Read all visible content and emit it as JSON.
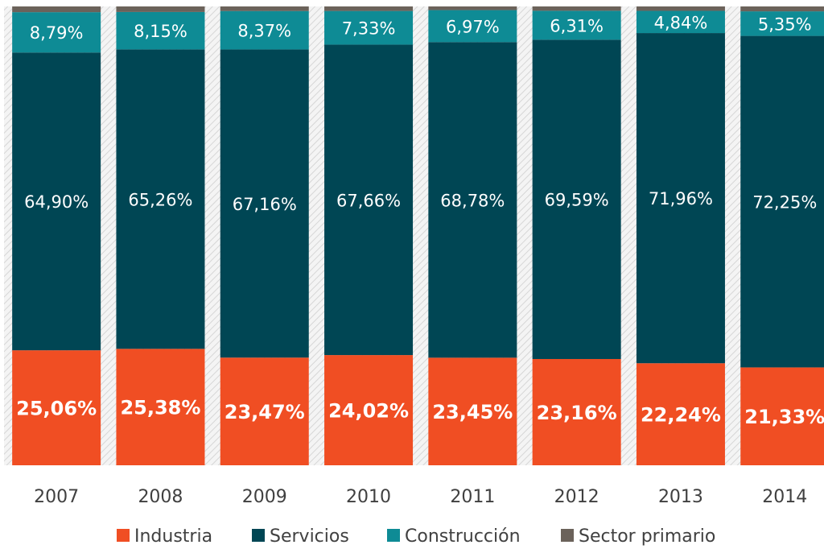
{
  "chart_data": {
    "type": "stacked_bar",
    "categories": [
      "2007",
      "2008",
      "2009",
      "2010",
      "2011",
      "2012",
      "2013",
      "2014"
    ],
    "ylim": [
      0,
      100
    ],
    "series": [
      {
        "name": "Industria",
        "color": "#f04e23",
        "values": [
          25.06,
          25.38,
          23.47,
          24.02,
          23.45,
          23.16,
          22.24,
          21.33
        ],
        "value_labels": [
          "25,06%",
          "25,38%",
          "23,47%",
          "24,02%",
          "23,45%",
          "23,16%",
          "22,24%",
          "21,33%"
        ]
      },
      {
        "name": "Servicios",
        "color": "#004654",
        "values": [
          64.9,
          65.26,
          67.16,
          67.66,
          68.78,
          69.59,
          71.96,
          72.25
        ],
        "value_labels": [
          "64,90%",
          "65,26%",
          "67,16%",
          "67,66%",
          "68,78%",
          "69,59%",
          "71,96%",
          "72,25%"
        ]
      },
      {
        "name": "Construcción",
        "color": "#0e8b95",
        "values": [
          8.79,
          8.15,
          8.37,
          7.33,
          6.97,
          6.31,
          4.84,
          5.35
        ],
        "value_labels": [
          "8,79%",
          "8,15%",
          "8,37%",
          "7,33%",
          "6,97%",
          "6,31%",
          "4,84%",
          "5,35%"
        ]
      },
      {
        "name": "Sector primario",
        "color": "#6b625a",
        "values": [
          1.25,
          1.21,
          1.0,
          0.99,
          0.8,
          0.94,
          0.96,
          1.07
        ]
      }
    ]
  }
}
